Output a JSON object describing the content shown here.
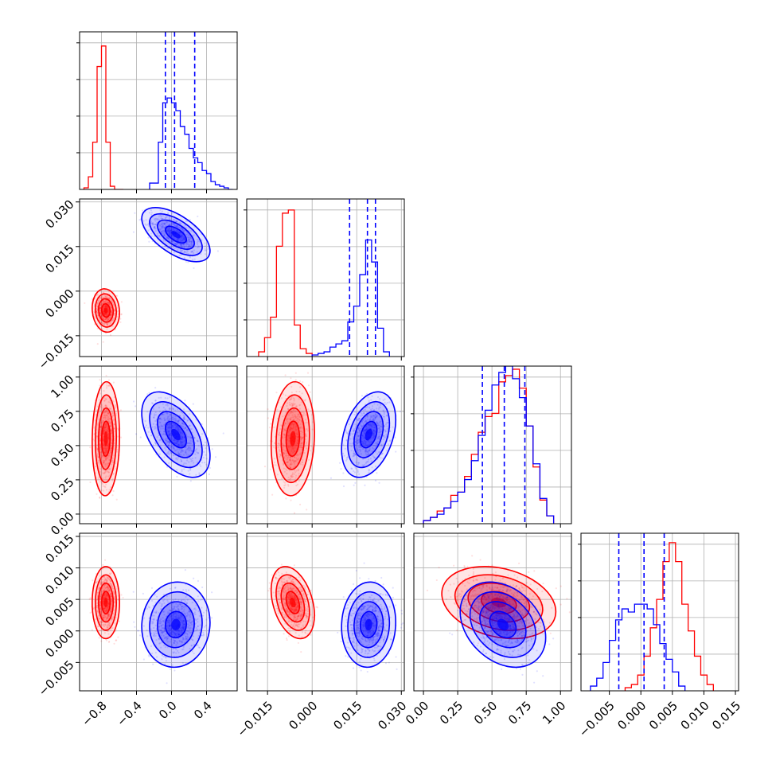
{
  "colors": {
    "red": "#ff0000",
    "blue": "#0000ff",
    "grid": "#b0b0b0",
    "axis": "#000000"
  },
  "chart_data": {
    "type": "corner",
    "grid": true,
    "params": [
      {
        "id": "p0",
        "range": [
          -1.05,
          0.75
        ],
        "ticks": [
          "-0.8",
          "-0.4",
          "0.0",
          "0.4"
        ],
        "tick_values": [
          -0.8,
          -0.4,
          0.0,
          0.4
        ]
      },
      {
        "id": "p1",
        "range": [
          -0.022,
          0.031
        ],
        "ticks": [
          "-0.015",
          "0.000",
          "0.015",
          "0.030"
        ],
        "tick_values": [
          -0.015,
          0.0,
          0.015,
          0.03
        ]
      },
      {
        "id": "p2",
        "range": [
          -0.07,
          1.08
        ],
        "ticks": [
          "0.00",
          "0.25",
          "0.50",
          "0.75",
          "1.00"
        ],
        "tick_values": [
          0.0,
          0.25,
          0.5,
          0.75,
          1.0
        ]
      },
      {
        "id": "p3",
        "range": [
          -0.0095,
          0.0155
        ],
        "ticks": [
          "-0.005",
          "0.000",
          "0.005",
          "0.010",
          "0.015"
        ],
        "tick_values": [
          -0.005,
          0.0,
          0.005,
          0.01,
          0.015
        ]
      }
    ],
    "series": [
      {
        "color": "red",
        "mean": [
          -0.75,
          -0.0065,
          0.55,
          0.0045
        ],
        "sd": [
          0.06,
          0.0028,
          0.16,
          0.0022
        ],
        "corr": [
          [
            0,
            1,
            -0.1
          ],
          [
            0,
            2,
            0.05
          ],
          [
            0,
            3,
            0.0
          ],
          [
            1,
            2,
            0.1
          ],
          [
            1,
            3,
            -0.35
          ],
          [
            2,
            3,
            -0.25
          ]
        ],
        "hist": [
          {
            "edges": [
              -1.0,
              -0.95,
              -0.9,
              -0.85,
              -0.8,
              -0.75,
              -0.7,
              -0.65,
              -0.6,
              -0.55
            ],
            "counts": [
              0.01,
              0.08,
              0.3,
              0.78,
              0.91,
              0.3,
              0.02,
              0.0,
              0.0
            ]
          },
          {
            "edges": [
              -0.018,
              -0.016,
              -0.014,
              -0.012,
              -0.01,
              -0.008,
              -0.006,
              -0.004,
              -0.002,
              0.0
            ],
            "counts": [
              0.03,
              0.12,
              0.25,
              0.7,
              0.91,
              0.93,
              0.2,
              0.05,
              0.02
            ]
          },
          {
            "edges": [
              0.0,
              0.05,
              0.1,
              0.15,
              0.2,
              0.25,
              0.3,
              0.35,
              0.4,
              0.45,
              0.5,
              0.55,
              0.6,
              0.65,
              0.7,
              0.75,
              0.8,
              0.85,
              0.9,
              0.95
            ],
            "counts": [
              0.02,
              0.04,
              0.08,
              0.1,
              0.18,
              0.2,
              0.3,
              0.44,
              0.58,
              0.68,
              0.7,
              0.9,
              0.94,
              0.98,
              0.86,
              0.62,
              0.36,
              0.15,
              0.05
            ]
          },
          {
            "edges": [
              -0.0025,
              -0.0015,
              -0.0005,
              0.0005,
              0.0015,
              0.0025,
              0.0035,
              0.0045,
              0.0055,
              0.0065,
              0.0075,
              0.0085,
              0.0095,
              0.0105,
              0.0115
            ],
            "counts": [
              0.02,
              0.04,
              0.1,
              0.22,
              0.4,
              0.58,
              0.82,
              0.94,
              0.82,
              0.55,
              0.38,
              0.22,
              0.1,
              0.04
            ]
          }
        ]
      },
      {
        "color": "blue",
        "mean": [
          0.05,
          0.019,
          0.58,
          0.001
        ],
        "sd": [
          0.15,
          0.0035,
          0.12,
          0.0026
        ],
        "corr": [
          [
            0,
            1,
            -0.6
          ],
          [
            0,
            2,
            -0.5
          ],
          [
            0,
            3,
            0.05
          ],
          [
            1,
            2,
            0.35
          ],
          [
            1,
            3,
            0.05
          ],
          [
            2,
            3,
            -0.3
          ]
        ],
        "quantiles": [
          [
            -0.07,
            0.035,
            0.265
          ],
          [
            0.0126,
            0.0186,
            0.0213
          ],
          [
            0.43,
            0.59,
            0.74
          ],
          [
            -0.0035,
            0.0005,
            0.0037
          ]
        ],
        "hist": [
          {
            "edges": [
              -0.25,
              -0.15,
              -0.1,
              -0.05,
              0.0,
              0.05,
              0.1,
              0.15,
              0.2,
              0.25,
              0.3,
              0.35,
              0.4,
              0.45,
              0.5,
              0.55,
              0.6,
              0.65,
              0.7
            ],
            "counts": [
              0.04,
              0.3,
              0.55,
              0.58,
              0.55,
              0.5,
              0.4,
              0.35,
              0.26,
              0.2,
              0.17,
              0.12,
              0.1,
              0.05,
              0.03,
              0.02,
              0.01,
              0.0
            ]
          },
          {
            "edges": [
              0.0,
              0.002,
              0.004,
              0.006,
              0.008,
              0.01,
              0.012,
              0.014,
              0.016,
              0.018,
              0.02,
              0.022,
              0.024,
              0.026
            ],
            "counts": [
              0.01,
              0.02,
              0.03,
              0.06,
              0.08,
              0.1,
              0.22,
              0.32,
              0.52,
              0.74,
              0.6,
              0.18,
              0.03
            ]
          },
          {
            "edges": [
              0.0,
              0.05,
              0.1,
              0.15,
              0.2,
              0.25,
              0.3,
              0.35,
              0.4,
              0.45,
              0.5,
              0.55,
              0.6,
              0.65,
              0.7,
              0.75,
              0.8,
              0.85,
              0.9,
              0.95
            ],
            "counts": [
              0.02,
              0.04,
              0.06,
              0.1,
              0.14,
              0.2,
              0.28,
              0.4,
              0.56,
              0.72,
              0.88,
              0.96,
              1.0,
              0.92,
              0.8,
              0.62,
              0.38,
              0.16,
              0.05
            ]
          },
          {
            "edges": [
              -0.008,
              -0.007,
              -0.006,
              -0.005,
              -0.004,
              -0.003,
              -0.002,
              -0.001,
              0.0,
              0.001,
              0.002,
              0.003,
              0.004,
              0.005,
              0.006,
              0.007
            ],
            "counts": [
              0.03,
              0.08,
              0.18,
              0.32,
              0.45,
              0.52,
              0.5,
              0.55,
              0.55,
              0.52,
              0.42,
              0.3,
              0.2,
              0.12,
              0.03
            ]
          }
        ]
      }
    ]
  }
}
